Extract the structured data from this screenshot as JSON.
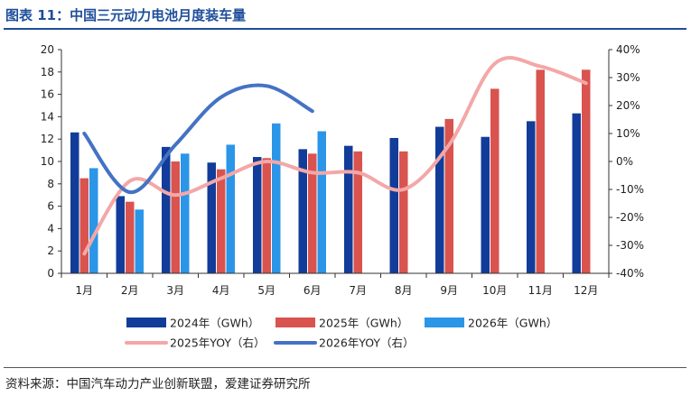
{
  "header": {
    "title": "图表 11：中国三元动力电池月度装车量"
  },
  "footer": {
    "source": "资料来源：中国汽车动力产业创新联盟，爱建证券研究所"
  },
  "chart_data": {
    "type": "bar",
    "title": "图表 11：中国三元动力电池月度装车量",
    "categories": [
      "1月",
      "2月",
      "3月",
      "4月",
      "5月",
      "6月",
      "7月",
      "8月",
      "9月",
      "10月",
      "11月",
      "12月"
    ],
    "y_left": {
      "range": [
        0,
        20
      ],
      "ticks": [
        0,
        2,
        4,
        6,
        8,
        10,
        12,
        14,
        16,
        18,
        20
      ]
    },
    "y_right": {
      "range": [
        -40,
        40
      ],
      "ticks": [
        "-40%",
        "-30%",
        "-20%",
        "-10%",
        "0%",
        "10%",
        "20%",
        "30%",
        "40%"
      ]
    },
    "grid": false,
    "legend_position": "bottom",
    "series": [
      {
        "name": "2024年（GWh）",
        "kind": "bar",
        "axis": "left",
        "color": "#123c99",
        "values": [
          12.6,
          6.9,
          11.3,
          9.9,
          10.4,
          11.1,
          11.4,
          12.1,
          13.1,
          12.2,
          13.6,
          14.3
        ]
      },
      {
        "name": "2025年（GWh）",
        "kind": "bar",
        "axis": "left",
        "color": "#d9534f",
        "values": [
          8.5,
          6.4,
          10.0,
          9.3,
          10.3,
          10.7,
          10.9,
          10.9,
          13.8,
          16.5,
          18.2,
          18.2
        ]
      },
      {
        "name": "2026年（GWh）",
        "kind": "bar",
        "axis": "left",
        "color": "#2b95e8",
        "values": [
          9.4,
          5.7,
          10.7,
          11.5,
          13.4,
          12.7,
          null,
          null,
          null,
          null,
          null,
          null
        ]
      },
      {
        "name": "2025年YOY（右）",
        "kind": "line",
        "axis": "right",
        "color": "#f4a7a7",
        "values": [
          -33,
          -7,
          -12,
          -6,
          0,
          -4,
          -4,
          -10,
          6,
          35,
          34,
          28
        ]
      },
      {
        "name": "2026年YOY（右）",
        "kind": "line",
        "axis": "right",
        "color": "#4472c4",
        "values": [
          10,
          -11,
          6,
          23,
          27,
          18,
          null,
          null,
          null,
          null,
          null,
          null
        ]
      }
    ]
  }
}
